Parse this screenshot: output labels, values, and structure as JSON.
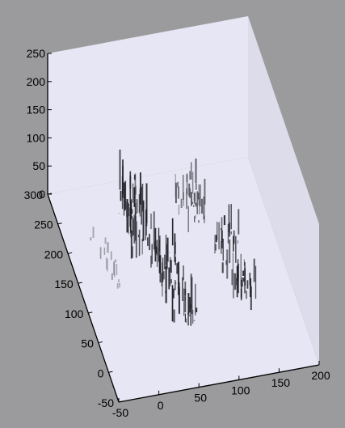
{
  "chart_data": {
    "type": "scatter",
    "dimension": "3d",
    "title": "",
    "xlabel": "",
    "ylabel": "",
    "zlabel": "",
    "grid": false,
    "legend": "none",
    "xlim": [
      -50,
      200
    ],
    "ylim": [
      -50,
      300
    ],
    "zlim": [
      0,
      250
    ],
    "x_ticks": [
      "-50",
      "0",
      "50",
      "100",
      "150",
      "200"
    ],
    "y_ticks": [
      "-50",
      "0",
      "50",
      "100",
      "150",
      "200",
      "250",
      "300"
    ],
    "z_ticks": [
      "0",
      "50",
      "100",
      "150",
      "200",
      "250"
    ],
    "colors": {
      "background": "#9b9b9d",
      "pane": "#e6e6f4",
      "pane_shade": "#dcdcea",
      "axis": "#000000",
      "mark_dark": "#1e1e24",
      "mark_mid": "#4a4a52",
      "mark_light": "#8a8a94"
    },
    "clusters": [
      {
        "x_range": [
          -20,
          0
        ],
        "y_range": [
          110,
          220
        ],
        "z_range": [
          0,
          40
        ],
        "density": 0.25,
        "shade": "light"
      },
      {
        "x_range": [
          20,
          50
        ],
        "y_range": [
          150,
          260
        ],
        "z_range": [
          0,
          120
        ],
        "density": 0.9,
        "shade": "dark"
      },
      {
        "x_range": [
          40,
          70
        ],
        "y_range": [
          30,
          170
        ],
        "z_range": [
          0,
          110
        ],
        "density": 0.85,
        "shade": "dark"
      },
      {
        "x_range": [
          95,
          125
        ],
        "y_range": [
          190,
          260
        ],
        "z_range": [
          0,
          80
        ],
        "density": 0.55,
        "shade": "mid"
      },
      {
        "x_range": [
          120,
          150
        ],
        "y_range": [
          50,
          180
        ],
        "z_range": [
          0,
          100
        ],
        "density": 0.75,
        "shade": "dark"
      }
    ]
  }
}
